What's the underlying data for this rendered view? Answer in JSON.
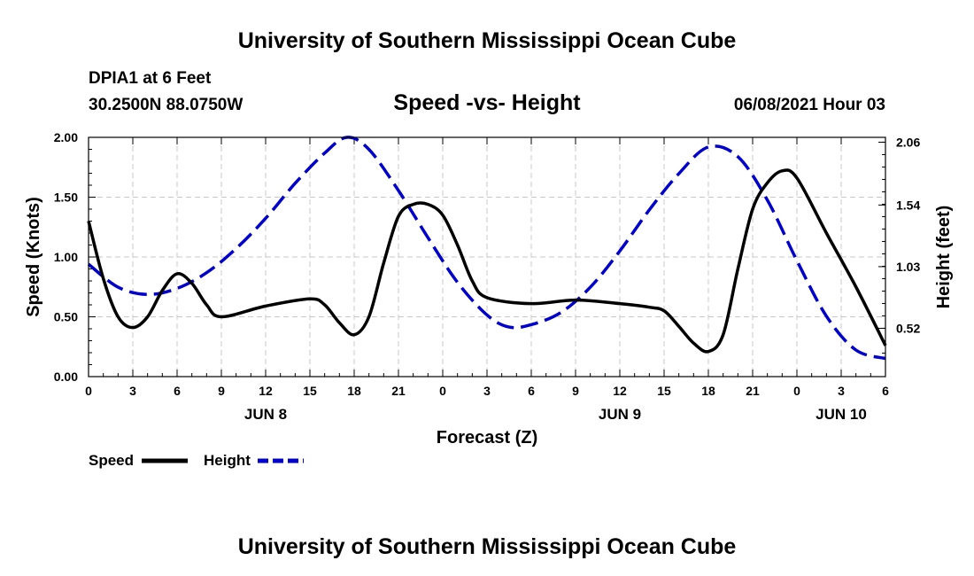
{
  "page": {
    "title_top": "University of Southern Mississippi Ocean Cube",
    "title_bottom": "University of Southern Mississippi Ocean Cube",
    "station_name": "DPIA1 at 6 Feet",
    "station_coords": "30.2500N  88.0750W",
    "run_time": "06/08/2021 Hour 03"
  },
  "chart_data": {
    "type": "line",
    "title": "Speed -vs- Height",
    "xlabel": "Forecast (Z)",
    "ylabel_left": "Speed (Knots)",
    "ylabel_right": "Height (feet)",
    "xlim": [
      0,
      54
    ],
    "ylim_left": [
      0,
      2.0
    ],
    "ylim_right": [
      0.12,
      2.1
    ],
    "grid": true,
    "x_ticks": [
      {
        "h": 0,
        "label": "0"
      },
      {
        "h": 3,
        "label": "3"
      },
      {
        "h": 6,
        "label": "6"
      },
      {
        "h": 9,
        "label": "9"
      },
      {
        "h": 12,
        "label": "12"
      },
      {
        "h": 15,
        "label": "15"
      },
      {
        "h": 18,
        "label": "18"
      },
      {
        "h": 21,
        "label": "21"
      },
      {
        "h": 24,
        "label": "0"
      },
      {
        "h": 27,
        "label": "3"
      },
      {
        "h": 30,
        "label": "6"
      },
      {
        "h": 33,
        "label": "9"
      },
      {
        "h": 36,
        "label": "12"
      },
      {
        "h": 39,
        "label": "15"
      },
      {
        "h": 42,
        "label": "18"
      },
      {
        "h": 45,
        "label": "21"
      },
      {
        "h": 48,
        "label": "0"
      },
      {
        "h": 51,
        "label": "3"
      },
      {
        "h": 54,
        "label": "6"
      }
    ],
    "date_labels": [
      {
        "h": 12,
        "label": "JUN 8"
      },
      {
        "h": 36,
        "label": "JUN 9"
      },
      {
        "h": 51,
        "label": "JUN 10"
      }
    ],
    "left_ticks": [
      {
        "v": 0.0,
        "label": "0.00"
      },
      {
        "v": 0.5,
        "label": "0.50"
      },
      {
        "v": 1.0,
        "label": "1.00"
      },
      {
        "v": 1.5,
        "label": "1.50"
      },
      {
        "v": 2.0,
        "label": "2.00"
      }
    ],
    "right_ticks": [
      {
        "v": 0.52,
        "label": "0.52"
      },
      {
        "v": 1.03,
        "label": "1.03"
      },
      {
        "v": 1.54,
        "label": "1.54"
      },
      {
        "v": 2.06,
        "label": "2.06"
      }
    ],
    "series": [
      {
        "name": "Speed",
        "axis": "left",
        "color": "#000000",
        "dash": "solid",
        "x": [
          0,
          1,
          2,
          3,
          4,
          5,
          6,
          7,
          8,
          9,
          12,
          15,
          16,
          17,
          18,
          19,
          20,
          21,
          22,
          23,
          24,
          25,
          26,
          27,
          30,
          33,
          36,
          38,
          39,
          40,
          41,
          42,
          43,
          44,
          45,
          46,
          47,
          48,
          50,
          52,
          54
        ],
        "values": [
          1.3,
          0.82,
          0.5,
          0.41,
          0.5,
          0.72,
          0.86,
          0.78,
          0.6,
          0.5,
          0.59,
          0.65,
          0.6,
          0.45,
          0.35,
          0.5,
          0.95,
          1.34,
          1.44,
          1.44,
          1.35,
          1.1,
          0.8,
          0.66,
          0.61,
          0.64,
          0.61,
          0.58,
          0.55,
          0.42,
          0.28,
          0.21,
          0.35,
          0.9,
          1.4,
          1.62,
          1.72,
          1.66,
          1.2,
          0.75,
          0.26
        ]
      },
      {
        "name": "Height",
        "axis": "right",
        "color": "#0000cc",
        "dash": "dashed",
        "x": [
          0,
          2,
          4,
          6,
          8,
          10,
          12,
          14,
          16,
          17.5,
          19,
          21,
          23,
          25,
          27,
          28.5,
          30,
          32,
          34,
          36,
          38,
          40,
          42,
          44,
          46,
          48,
          50,
          52,
          54
        ],
        "values": [
          1.05,
          0.86,
          0.8,
          0.85,
          0.98,
          1.18,
          1.43,
          1.72,
          1.97,
          2.1,
          2.0,
          1.66,
          1.27,
          0.9,
          0.63,
          0.53,
          0.55,
          0.65,
          0.86,
          1.16,
          1.5,
          1.8,
          2.02,
          1.94,
          1.58,
          1.08,
          0.62,
          0.34,
          0.27
        ]
      }
    ],
    "legend": {
      "position": "bottom-left",
      "items": [
        {
          "label": "Speed",
          "color": "#000000",
          "dash": "solid"
        },
        {
          "label": "Height",
          "color": "#0000cc",
          "dash": "dashed"
        }
      ]
    }
  }
}
